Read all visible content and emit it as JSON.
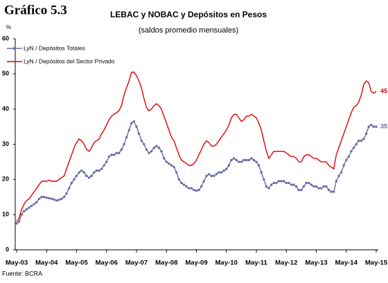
{
  "chart_data": {
    "type": "line",
    "figure_label": "Gráfico 5.3",
    "title": "LEBAC y NOBAC y Depósitos en Pesos",
    "subtitle": "(saldos promedio mensuales)",
    "y_unit": "%",
    "source": "Fuente: BCRA",
    "categories": [
      "May-03",
      null,
      null,
      null,
      null,
      null,
      null,
      null,
      null,
      null,
      null,
      null,
      "May-04",
      null,
      null,
      null,
      null,
      null,
      null,
      null,
      null,
      null,
      null,
      null,
      "May-05",
      null,
      null,
      null,
      null,
      null,
      null,
      null,
      null,
      null,
      null,
      null,
      "May-06",
      null,
      null,
      null,
      null,
      null,
      null,
      null,
      null,
      null,
      null,
      null,
      "May-07",
      null,
      null,
      null,
      null,
      null,
      null,
      null,
      null,
      null,
      null,
      null,
      "May-08",
      null,
      null,
      null,
      null,
      null,
      null,
      null,
      null,
      null,
      null,
      null,
      "May-09",
      null,
      null,
      null,
      null,
      null,
      null,
      null,
      null,
      null,
      null,
      null,
      "May-10",
      null,
      null,
      null,
      null,
      null,
      null,
      null,
      null,
      null,
      null,
      null,
      "May-11",
      null,
      null,
      null,
      null,
      null,
      null,
      null,
      null,
      null,
      null,
      null,
      "May-12",
      null,
      null,
      null,
      null,
      null,
      null,
      null,
      null,
      null,
      null,
      null,
      "May-13",
      null,
      null,
      null,
      null,
      null,
      null,
      null,
      null,
      null,
      null,
      null,
      "May-14",
      null,
      null,
      null,
      null,
      null,
      null,
      null,
      null,
      null,
      null,
      null,
      "May-15"
    ],
    "series": [
      {
        "name": "LyN / Depósitos Totales",
        "color": "#6a6aa8",
        "markers": true,
        "values": [
          7.5,
          8,
          10,
          11,
          11.5,
          12,
          12.5,
          13,
          13.5,
          14.5,
          15,
          15,
          14.8,
          14.7,
          14.5,
          14.3,
          14,
          14.2,
          14.5,
          15,
          16,
          17.5,
          19,
          20,
          21,
          22,
          22.5,
          22,
          21,
          20.5,
          21,
          22,
          22.5,
          22.5,
          23,
          24,
          25,
          26.5,
          27,
          27,
          27.5,
          27.5,
          28.5,
          30,
          32,
          34,
          36,
          36.5,
          35,
          33,
          31,
          30,
          28.5,
          27.5,
          28,
          29,
          29.5,
          29,
          28,
          26,
          25,
          24.5,
          24,
          23.5,
          22,
          20,
          19,
          18.5,
          18,
          17.5,
          17.5,
          17,
          16.8,
          17,
          18,
          19.5,
          21,
          21.5,
          21,
          21,
          21.5,
          22,
          22,
          22.5,
          23,
          24,
          25.5,
          26,
          25.5,
          25,
          25,
          25.5,
          25.5,
          25.5,
          26,
          25.5,
          25,
          24,
          22,
          20,
          18,
          17.5,
          18.5,
          19,
          19,
          19.5,
          19.5,
          19.5,
          19,
          19,
          18.5,
          18.5,
          18,
          17,
          17,
          18,
          19,
          19,
          18.5,
          18,
          18,
          17.5,
          17.5,
          18,
          18,
          17,
          16.5,
          16.5,
          19.5,
          21,
          22,
          24,
          25.5,
          26.5,
          28,
          29,
          30,
          31,
          31,
          31.5,
          33,
          35,
          35.5,
          35,
          35
        ]
      },
      {
        "name": "LyN / Depósitos del Sector Privado",
        "color": "#e00000",
        "markers": false,
        "values": [
          8,
          9,
          11.5,
          13,
          14,
          14.5,
          15.5,
          16.5,
          17.5,
          18.5,
          19.5,
          19.5,
          19.5,
          19.8,
          19.5,
          19.5,
          19.5,
          20,
          20.5,
          21,
          23,
          25,
          27,
          29,
          30.5,
          31.5,
          31,
          30,
          28.5,
          28,
          29,
          30.5,
          31,
          31.5,
          33,
          34,
          35.5,
          37,
          38,
          38.5,
          39,
          39.5,
          41,
          44,
          46,
          48,
          50.5,
          50.5,
          49.5,
          48,
          46,
          43,
          40.5,
          39.5,
          40,
          41,
          41.5,
          41,
          40,
          38,
          36,
          34,
          32,
          31,
          29,
          27,
          25.5,
          25,
          24.5,
          24,
          24,
          24.5,
          25.5,
          27,
          28.5,
          30,
          31,
          30.5,
          29.5,
          29.5,
          30,
          31,
          32,
          33,
          34,
          35.5,
          37.5,
          38.5,
          38.5,
          37.5,
          36.5,
          37,
          38,
          38,
          38.5,
          38,
          37.5,
          36,
          34,
          31,
          28,
          26,
          27,
          28,
          28,
          28,
          28,
          28,
          27.5,
          27,
          26.5,
          26.5,
          26,
          25,
          25,
          26.5,
          27,
          27,
          26.5,
          26,
          26,
          25.5,
          25,
          25,
          25,
          24,
          23.5,
          23,
          27,
          29,
          31,
          33,
          35,
          37,
          39,
          40.5,
          41,
          42,
          44,
          47,
          48,
          47.5,
          45,
          44.5,
          45
        ]
      }
    ],
    "ylim": [
      0,
      60
    ],
    "yticks": [
      0,
      10,
      20,
      30,
      40,
      50,
      60
    ],
    "grid": false
  }
}
